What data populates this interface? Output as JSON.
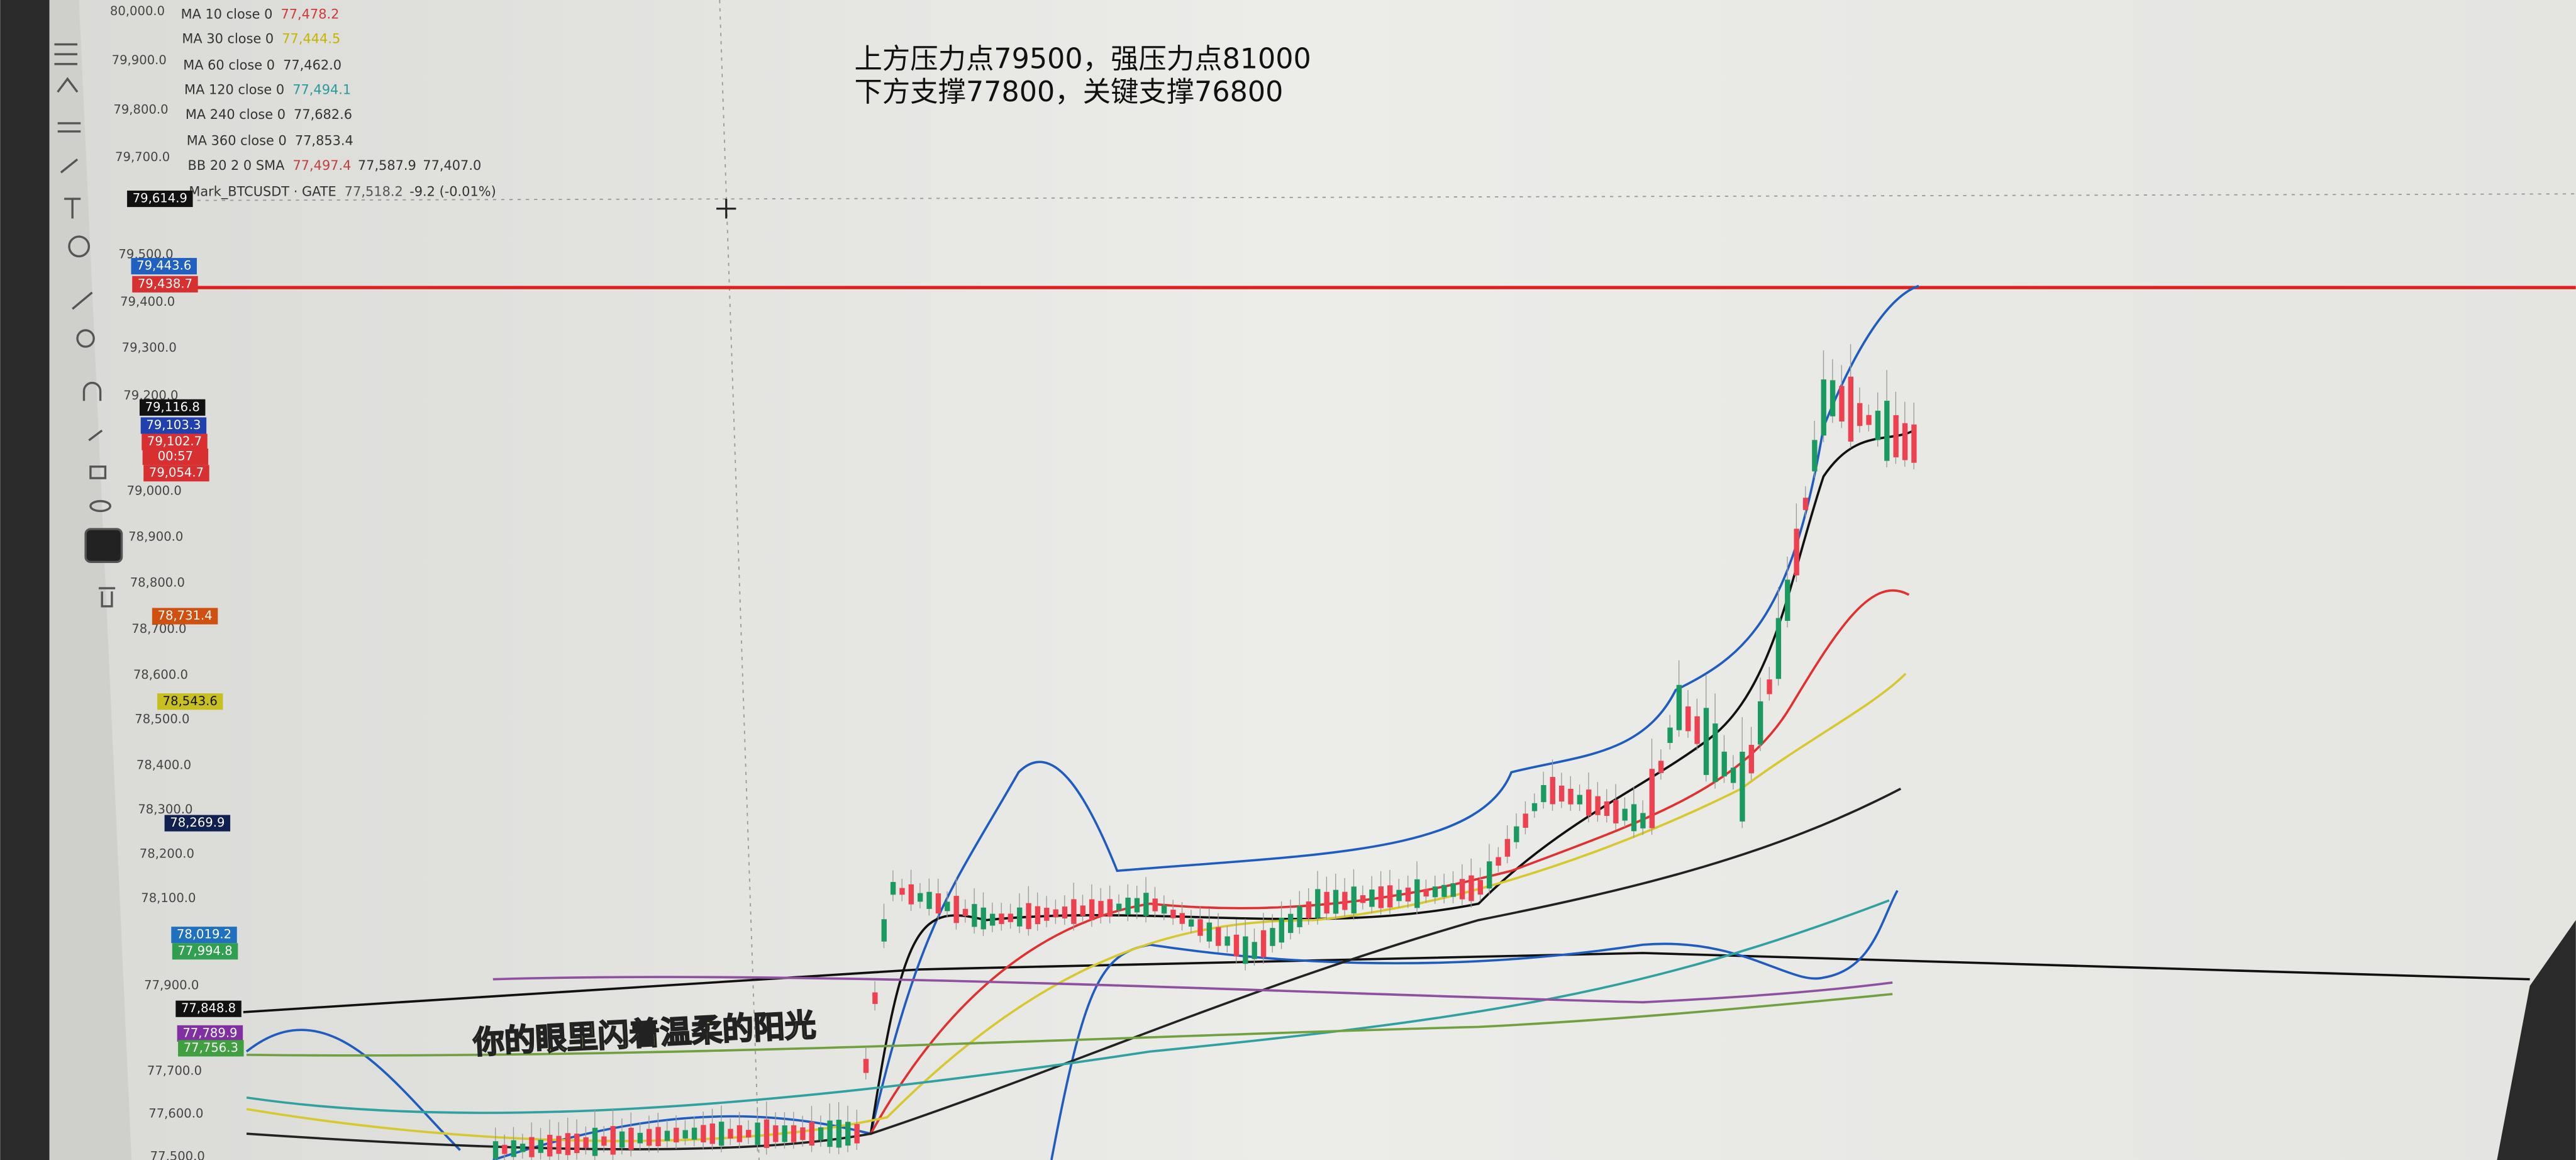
{
  "indicators": [
    {
      "label": "MA 10 close 0",
      "values": [
        "77,478.2"
      ],
      "color": "#d03a3a"
    },
    {
      "label": "MA 30 close 0",
      "values": [
        "77,444.5"
      ],
      "color": "#c8b400"
    },
    {
      "label": "MA 60 close 0",
      "values": [
        "77,462.0"
      ],
      "color": "#333333"
    },
    {
      "label": "MA 120 close 0",
      "values": [
        "77,494.1"
      ],
      "color": "#2a9a9a"
    },
    {
      "label": "MA 240 close 0",
      "values": [
        "77,682.6"
      ],
      "color": "#333333"
    },
    {
      "label": "MA 360 close 0",
      "values": [
        "77,853.4"
      ],
      "color": "#333333"
    },
    {
      "label": "BB 20 2 0 SMA",
      "values": [
        "77,497.4",
        "77,587.9",
        "77,407.0"
      ],
      "color": "#c04040"
    },
    {
      "label": "Mark_BTCUSDT · GATE",
      "values": [
        "77,518.2",
        "-9.2 (-0.01%)"
      ],
      "color": "#555555"
    }
  ],
  "annotation": [
    "上方压力点79500，强压力点81000",
    "下方支撑77800，关键支撑76800"
  ],
  "caption": "你的眼里闪着温柔的阳光",
  "price_axis": [
    "80,000.0",
    "79,900.0",
    "79,800.0",
    "79,700.0",
    "79,500.0",
    "79,400.0",
    "79,300.0",
    "79,200.0",
    "79,000.0",
    "78,900.0",
    "78,800.0",
    "78,700.0",
    "78,600.0",
    "78,500.0",
    "78,400.0",
    "78,300.0",
    "78,200.0",
    "78,100.0",
    "77,900.0",
    "77,700.0",
    "77,600.0",
    "77,500.0"
  ],
  "price_tags": [
    {
      "label": "79,614.9",
      "color": "#111111"
    },
    {
      "label": "79,443.6",
      "color": "#2060c0"
    },
    {
      "label": "79,438.7",
      "color": "#d83030"
    },
    {
      "label": "79,116.8",
      "color": "#111111"
    },
    {
      "label": "79,103.3",
      "color": "#2040b0"
    },
    {
      "label": "79,102.7",
      "color": "#d83030"
    },
    {
      "label": "00:57",
      "color": "#d83030"
    },
    {
      "label": "79,054.7",
      "color": "#d83030"
    },
    {
      "label": "78,731.4",
      "color": "#d05010"
    },
    {
      "label": "78,543.6",
      "color": "#c8c020"
    },
    {
      "label": "78,269.9",
      "color": "#102050"
    },
    {
      "label": "78,019.2",
      "color": "#2070c0"
    },
    {
      "label": "77,994.8",
      "color": "#30a050"
    },
    {
      "label": "77,848.8",
      "color": "#111111"
    },
    {
      "label": "77,789.9",
      "color": "#8030a0"
    },
    {
      "label": "77,756.3",
      "color": "#40a040"
    }
  ]
}
